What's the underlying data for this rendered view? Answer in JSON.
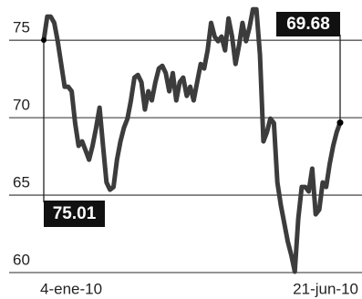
{
  "chart_data": {
    "type": "line",
    "categories": [
      "4-ene-10",
      null,
      null,
      null,
      null,
      null,
      null,
      null,
      null,
      null,
      null,
      null,
      null,
      null,
      null,
      null,
      null,
      null,
      null,
      null,
      null,
      null,
      null,
      null,
      null,
      null,
      null,
      null,
      null,
      null,
      null,
      null,
      null,
      null,
      null,
      null,
      null,
      null,
      null,
      null,
      null,
      null,
      null,
      null,
      null,
      null,
      null,
      null,
      null,
      null,
      null,
      null,
      null,
      null,
      null,
      null,
      null,
      null,
      null,
      null,
      null,
      null,
      null,
      null,
      null,
      null,
      null,
      null,
      null,
      null,
      null,
      null,
      null,
      null,
      null,
      null,
      null,
      null,
      null,
      null,
      null,
      null,
      null,
      null,
      null,
      "21-jun-10"
    ],
    "values": [
      75.01,
      76.53,
      76.53,
      76.12,
      74.94,
      73.47,
      72.0,
      72.0,
      71.71,
      69.65,
      68.18,
      68.47,
      67.88,
      67.29,
      68.18,
      69.35,
      70.65,
      68.18,
      65.82,
      65.35,
      65.53,
      67.29,
      68.47,
      69.35,
      69.94,
      71.12,
      72.59,
      72.76,
      72.29,
      70.53,
      71.71,
      71.12,
      72.29,
      73.18,
      73.35,
      72.88,
      71.71,
      72.88,
      71.12,
      72.29,
      72.59,
      71.41,
      72.0,
      71.12,
      72.29,
      73.47,
      73.18,
      74.35,
      76.12,
      75.24,
      74.94,
      75.24,
      74.35,
      76.41,
      75.24,
      73.47,
      74.65,
      76.12,
      74.94,
      75.82,
      77.0,
      77.0,
      74.06,
      68.47,
      69.06,
      69.94,
      69.65,
      65.82,
      64.35,
      63.18,
      62.0,
      61.12,
      60.06,
      63.47,
      65.53,
      65.53,
      65.24,
      66.71,
      63.76,
      64.06,
      65.82,
      65.53,
      67.0,
      68.18,
      69.06,
      69.68
    ],
    "color": "#3c3c3c",
    "ylim": [
      60,
      77.6
    ],
    "yticks": [
      60,
      65,
      70,
      75
    ],
    "grid": true,
    "annotations": [
      "75.01",
      "69.68"
    ]
  }
}
